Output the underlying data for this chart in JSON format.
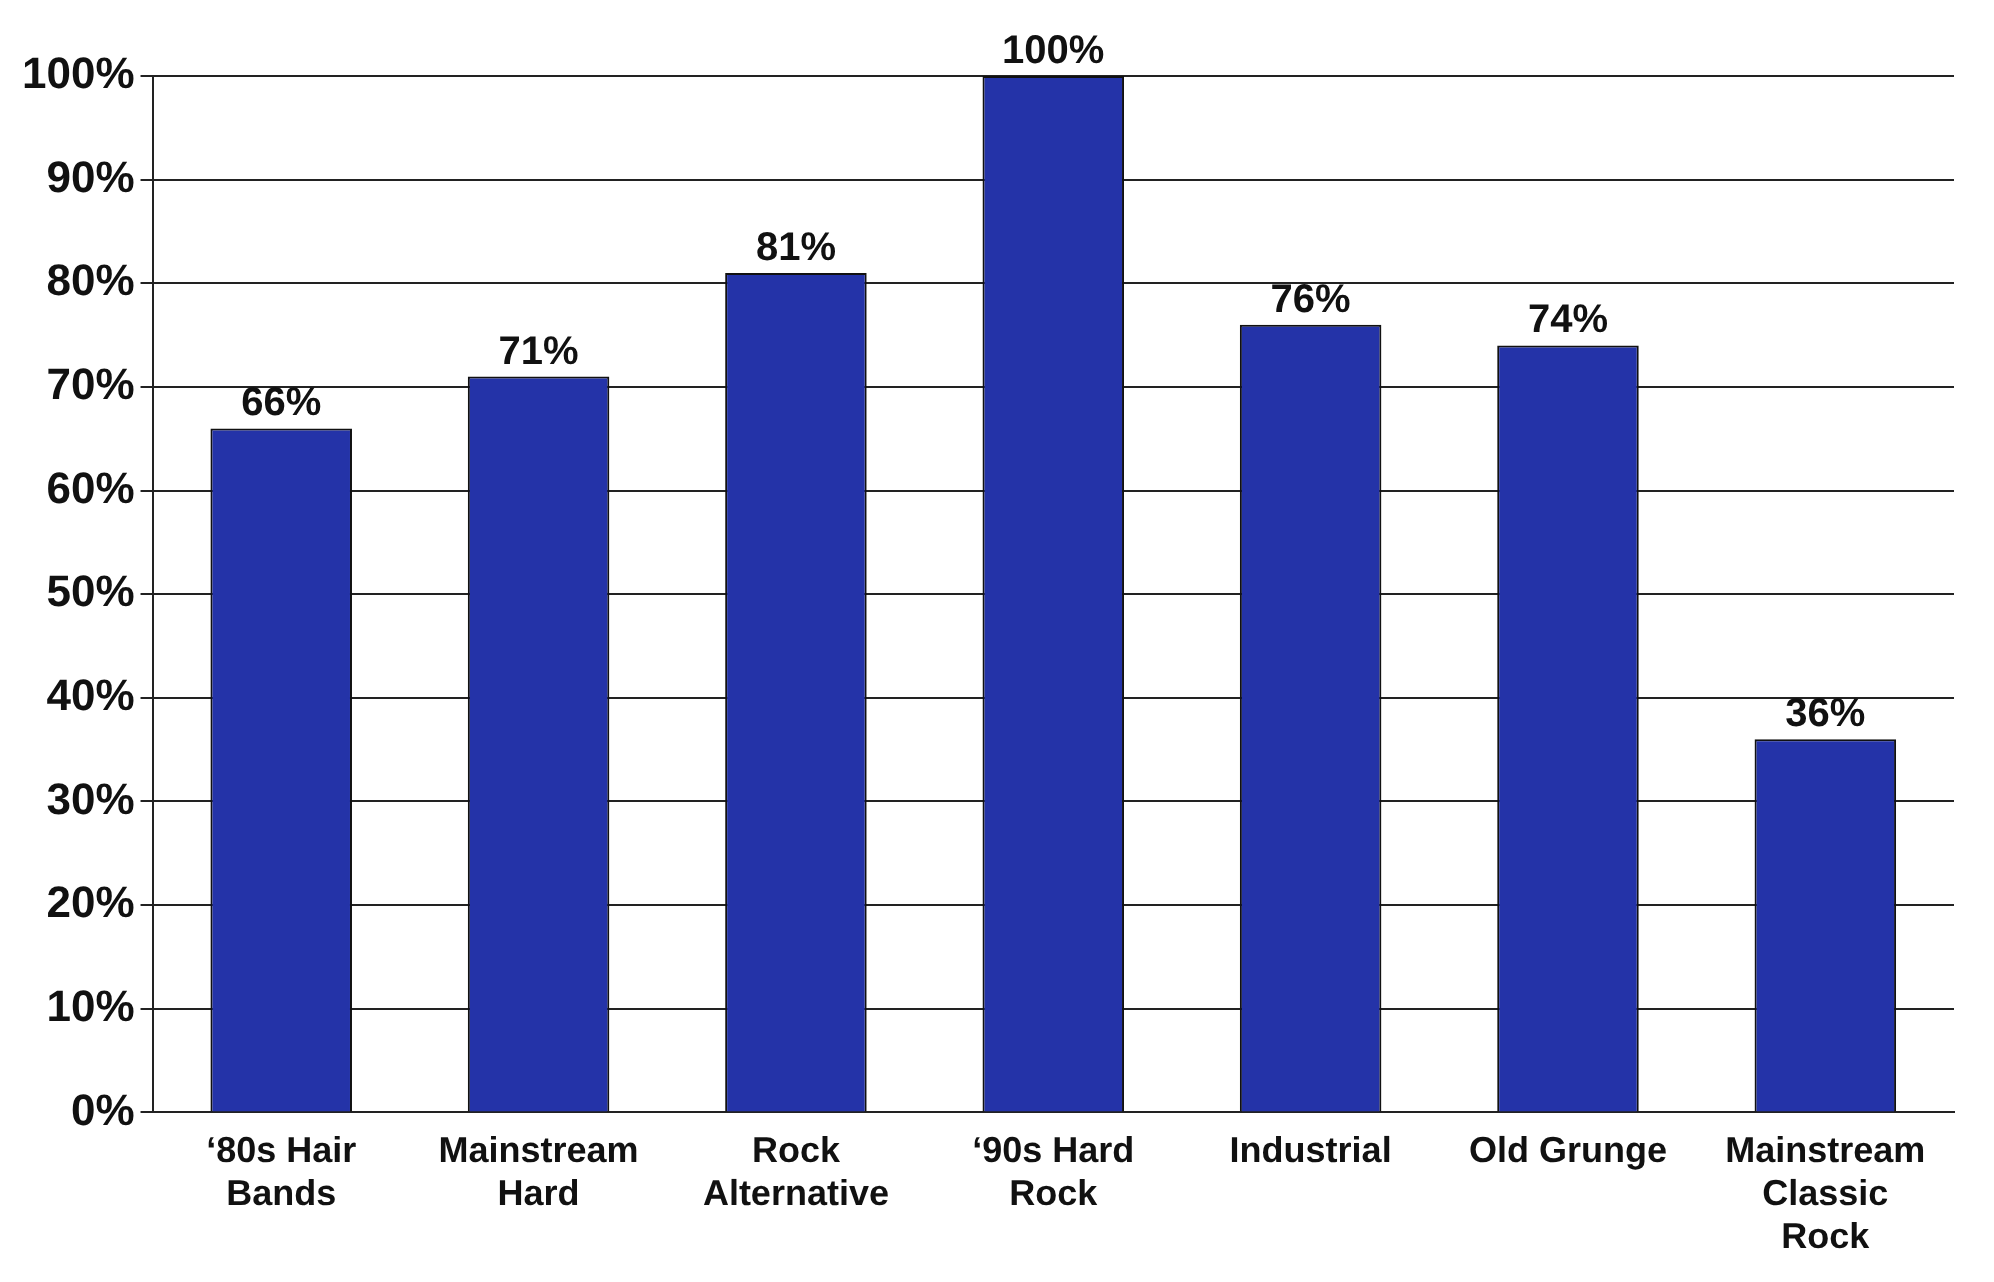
{
  "chart_data": {
    "type": "bar",
    "categories": [
      "‘80s Hair Bands",
      "Mainstream Hard",
      "Rock Alternative",
      "‘90s Hard Rock",
      "Industrial",
      "Old Grunge",
      "Mainstream Classic Rock"
    ],
    "values": [
      66,
      71,
      81,
      100,
      76,
      74,
      36
    ],
    "value_labels": [
      "66%",
      "71%",
      "81%",
      "100%",
      "76%",
      "74%",
      "36%"
    ],
    "color": "#2433a8",
    "ylim": [
      0,
      100
    ],
    "yticks": [
      {
        "value": 0,
        "label": "0%"
      },
      {
        "value": 10,
        "label": "10%"
      },
      {
        "value": 20,
        "label": "20%"
      },
      {
        "value": 30,
        "label": "30%"
      },
      {
        "value": 40,
        "label": "40%"
      },
      {
        "value": 50,
        "label": "50%"
      },
      {
        "value": 60,
        "label": "60%"
      },
      {
        "value": 70,
        "label": "70%"
      },
      {
        "value": 80,
        "label": "80%"
      },
      {
        "value": 90,
        "label": "90%"
      },
      {
        "value": 100,
        "label": "100%"
      }
    ],
    "grid": "y",
    "legend": false
  }
}
